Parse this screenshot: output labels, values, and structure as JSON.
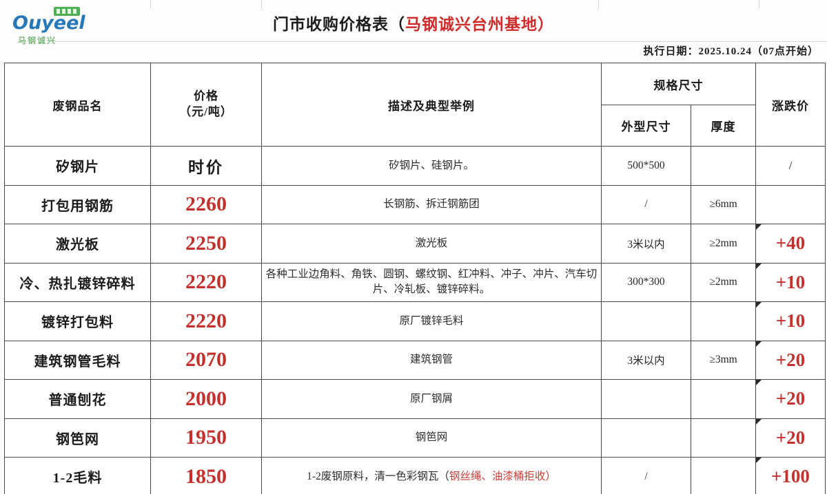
{
  "colors": {
    "accent_red": "#c5302d",
    "title_red": "#cf2b2b",
    "brand_blue": "#2878b8",
    "badge_green": "#4db052",
    "border_dark": "#474747"
  },
  "logo": {
    "brand": "Ouyeel",
    "subtitle": "马钢诚兴"
  },
  "header": {
    "title_black": "门市收购价格表（",
    "title_red": "马钢诚兴台州基地）",
    "date_line": "执行日期：2025.10.24（07点开始）"
  },
  "table": {
    "headers": {
      "name": "废钢品名",
      "price_line1": "价格",
      "price_line2": "（元/吨）",
      "desc": "描述及典型举例",
      "spec": "规格尺寸",
      "size": "外型尺寸",
      "thickness": "厚度",
      "change": "涨跌价"
    },
    "rows": [
      {
        "name": "矽钢片",
        "price": "时价",
        "price_red": false,
        "desc": "矽钢片、硅钢片。",
        "desc_red": "",
        "size": "500*500",
        "thickness": "",
        "change": "/",
        "change_red": false,
        "marker": false
      },
      {
        "name": "打包用钢筋",
        "price": "2260",
        "price_red": true,
        "desc": "长钢筋、拆迁钢筋团",
        "desc_red": "",
        "size": "/",
        "thickness": "≥6mm",
        "change": "",
        "change_red": true,
        "marker": false
      },
      {
        "name": "激光板",
        "price": "2250",
        "price_red": true,
        "desc": "激光板",
        "desc_red": "",
        "size": "3米以内",
        "thickness": "≥2mm",
        "change": "+40",
        "change_red": true,
        "marker": true
      },
      {
        "name": "冷、热扎镀锌碎料",
        "price": "2220",
        "price_red": true,
        "desc": "各种工业边角料、角铁、圆钢、螺纹钢、红冲料、冲子、冲片、汽车切片、冷轧板、镀锌碎料。",
        "desc_red": "",
        "size": "300*300",
        "thickness": "≥2mm",
        "change": "+10",
        "change_red": true,
        "marker": true
      },
      {
        "name": "镀锌打包料",
        "price": "2220",
        "price_red": true,
        "desc": "原厂镀锌毛料",
        "desc_red": "",
        "size": "",
        "thickness": "",
        "change": "+10",
        "change_red": true,
        "marker": true
      },
      {
        "name": "建筑钢管毛料",
        "price": "2070",
        "price_red": true,
        "desc": "建筑钢管",
        "desc_red": "",
        "size": "3米以内",
        "thickness": "≥3mm",
        "change": "+20",
        "change_red": true,
        "marker": true
      },
      {
        "name": "普通刨花",
        "price": "2000",
        "price_red": true,
        "desc": "原厂钢屑",
        "desc_red": "",
        "size": "",
        "thickness": "",
        "change": "+20",
        "change_red": true,
        "marker": true
      },
      {
        "name": "钢笆网",
        "price": "1950",
        "price_red": true,
        "desc": "钢笆网",
        "desc_red": "",
        "size": "",
        "thickness": "",
        "change": "+20",
        "change_red": true,
        "marker": true
      },
      {
        "name": "1-2毛料",
        "price": "1850",
        "price_red": true,
        "desc": "1-2废钢原料，清一色彩钢瓦（",
        "desc_red": "钢丝绳、油漆桶拒收）",
        "size": "/",
        "thickness": "",
        "change": "+100",
        "change_red": true,
        "marker": true
      }
    ]
  }
}
